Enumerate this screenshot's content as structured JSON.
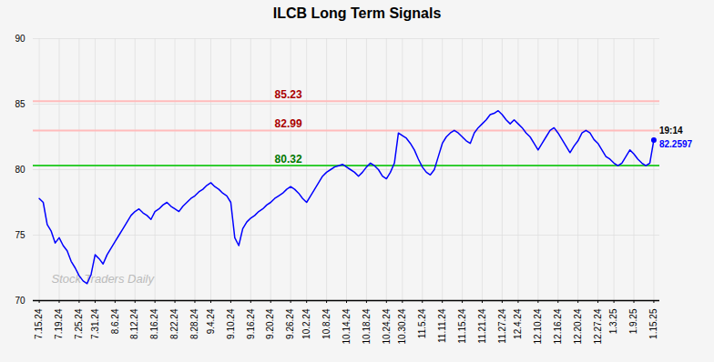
{
  "chart_data": {
    "type": "line",
    "title": "ILCB Long Term Signals",
    "categories": [
      "7.15.24",
      null,
      null,
      null,
      null,
      "7.19.24",
      null,
      null,
      null,
      null,
      "7.25.24",
      null,
      null,
      null,
      "7.31.24",
      null,
      null,
      null,
      null,
      "8.6.24",
      null,
      null,
      null,
      null,
      "8.12.24",
      null,
      null,
      null,
      null,
      "8.16.24",
      null,
      null,
      null,
      null,
      "8.22.24",
      null,
      null,
      null,
      null,
      "8.28.24",
      null,
      null,
      null,
      "9.4.24",
      null,
      null,
      null,
      null,
      "9.10.24",
      null,
      null,
      null,
      null,
      "9.16.24",
      null,
      null,
      null,
      null,
      "9.20.24",
      null,
      null,
      null,
      null,
      "9.26.24",
      null,
      null,
      null,
      "10.2.24",
      null,
      null,
      null,
      null,
      "10.8.24",
      null,
      null,
      null,
      null,
      "10.14.24",
      null,
      null,
      null,
      null,
      "10.18.24",
      null,
      null,
      null,
      null,
      "10.24.24",
      null,
      null,
      null,
      "10.30.24",
      null,
      null,
      null,
      null,
      "11.5.24",
      null,
      null,
      null,
      null,
      "11.11.24",
      null,
      null,
      null,
      null,
      "11.15.24",
      null,
      null,
      null,
      null,
      "11.21.24",
      null,
      null,
      null,
      null,
      "11.27.24",
      null,
      null,
      null,
      "12.4.24",
      null,
      null,
      null,
      null,
      "12.10.24",
      null,
      null,
      null,
      null,
      "12.16.24",
      null,
      null,
      null,
      null,
      "12.20.24",
      null,
      null,
      null,
      null,
      "12.27.24",
      null,
      null,
      null,
      "1.3.25",
      null,
      null,
      null,
      null,
      "1.9.25",
      null,
      null,
      null,
      null,
      "1.15.25"
    ],
    "values": [
      77.8,
      77.5,
      75.8,
      75.3,
      74.4,
      74.8,
      74.2,
      73.8,
      73.0,
      72.5,
      71.9,
      71.5,
      71.3,
      72.0,
      73.5,
      73.2,
      72.8,
      73.5,
      74.0,
      74.5,
      75.0,
      75.5,
      76.0,
      76.5,
      76.8,
      77.0,
      76.7,
      76.5,
      76.2,
      76.8,
      77.0,
      77.3,
      77.5,
      77.2,
      77.0,
      76.8,
      77.2,
      77.5,
      77.8,
      78.0,
      78.3,
      78.5,
      78.8,
      79.0,
      78.7,
      78.5,
      78.2,
      78.0,
      77.5,
      74.8,
      74.2,
      75.5,
      76.0,
      76.3,
      76.5,
      76.8,
      77.0,
      77.3,
      77.5,
      77.8,
      78.0,
      78.2,
      78.5,
      78.7,
      78.5,
      78.2,
      77.8,
      77.5,
      78.0,
      78.5,
      79.0,
      79.5,
      79.8,
      80.0,
      80.2,
      80.3,
      80.4,
      80.2,
      80.0,
      79.8,
      79.5,
      79.8,
      80.2,
      80.5,
      80.3,
      80.0,
      79.5,
      79.3,
      79.8,
      80.5,
      82.8,
      82.6,
      82.4,
      82.0,
      81.5,
      80.8,
      80.2,
      79.8,
      79.6,
      80.0,
      81.0,
      82.0,
      82.5,
      82.8,
      83.0,
      82.8,
      82.5,
      82.2,
      82.0,
      82.8,
      83.2,
      83.5,
      83.8,
      84.2,
      84.3,
      84.5,
      84.2,
      83.8,
      83.5,
      83.8,
      83.5,
      83.2,
      82.8,
      82.5,
      82.0,
      81.5,
      82.0,
      82.5,
      83.0,
      83.2,
      82.8,
      82.3,
      81.8,
      81.3,
      81.8,
      82.2,
      82.8,
      83.0,
      82.8,
      82.3,
      82.0,
      81.5,
      81.0,
      80.8,
      80.5,
      80.3,
      80.5,
      81.0,
      81.5,
      81.2,
      80.8,
      80.5,
      80.3,
      80.5,
      82.2597
    ],
    "color": "blue",
    "ylim": [
      70,
      90
    ],
    "yticks": [
      70,
      75,
      80,
      85,
      90
    ],
    "grid": true,
    "grid_color": "#dddddd",
    "background_color": "#f5f5f5",
    "reference_lines": [
      {
        "value": 85.23,
        "label": "85.23",
        "color": "#ffbbbb",
        "label_color": "#aa0000"
      },
      {
        "value": 82.99,
        "label": "82.99",
        "color": "#ffbbbb",
        "label_color": "#aa0000"
      },
      {
        "value": 80.32,
        "label": "80.32",
        "color": "#33cc33",
        "label_color": "#007700"
      }
    ],
    "annotations": [
      {
        "text": "19:14",
        "color": "black"
      },
      {
        "text": "82.2597",
        "color": "blue"
      }
    ],
    "watermark": {
      "text": "Stock Traders Daily",
      "color": "#bbbbbb"
    }
  }
}
